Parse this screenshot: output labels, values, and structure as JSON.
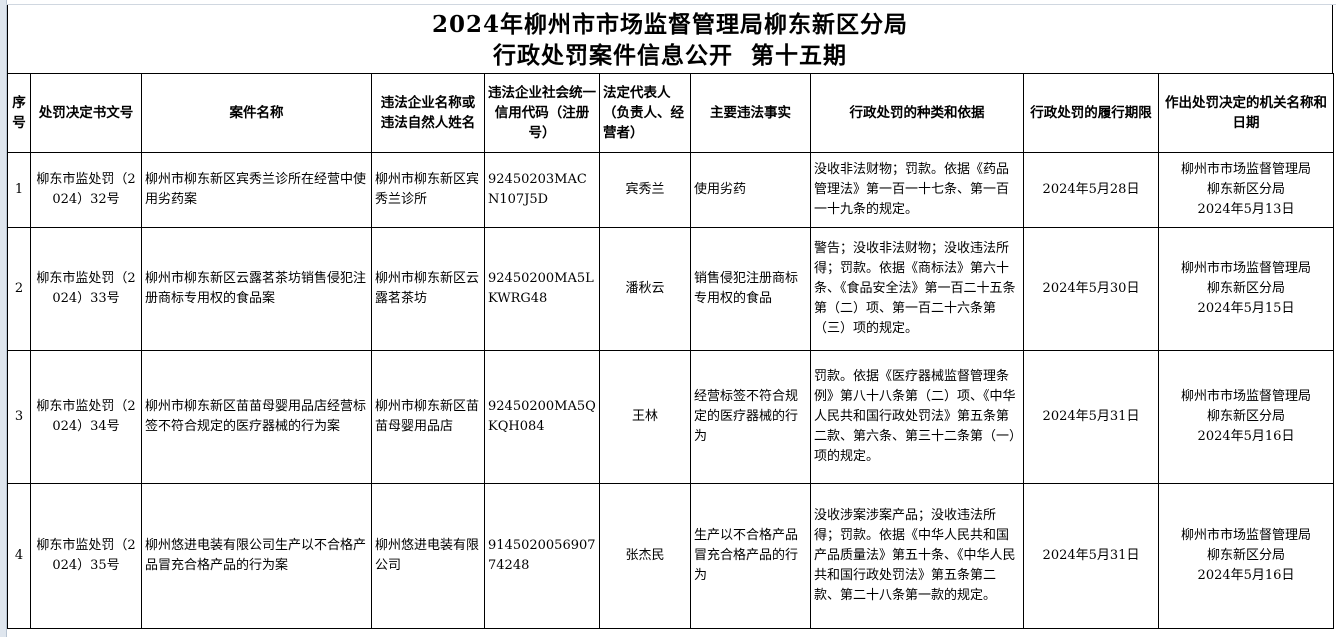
{
  "title": {
    "line1": "2024年柳州市市场监督管理局柳东新区分局",
    "line2": "行政处罚案件信息公开  第十五期"
  },
  "headers": [
    "序号",
    "处罚决定书文号",
    "案件名称",
    "违法企业名称或违法自然人姓名",
    "违法企业社会统一信用代码（注册号）",
    "法定代表人（负责人、经营者）",
    "主要违法事实",
    "行政处罚的种类和依据",
    "行政处罚的履行期限",
    "作出处罚决定的机关名称和日期"
  ],
  "rows": [
    {
      "no": "1",
      "doc": "柳东市监处罚（2024）32号",
      "case": "柳州市柳东新区宾秀兰诊所在经营中使用劣药案",
      "entity": "柳州市柳东新区宾秀兰诊所",
      "code": "92450203MACN107J5D",
      "rep": "宾秀兰",
      "fact": "使用劣药",
      "basis": "没收非法财物；罚款。依据《药品管理法》第一百一十七条、第一百一十九条的规定。",
      "deadline": "2024年5月28日",
      "org": "柳州市市场监督管理局柳东新区分局",
      "date": "2024年5月13日"
    },
    {
      "no": "2",
      "doc": "柳东市监处罚（2024）33号",
      "case": "柳州市柳东新区云露茗茶坊销售侵犯注册商标专用权的食品案",
      "entity": "柳州市柳东新区云露茗茶坊",
      "code": "92450200MA5LKWRG48",
      "rep": "潘秋云",
      "fact": "销售侵犯注册商标专用权的食品",
      "basis": "警告；没收非法财物；没收违法所得；罚款。依据《商标法》第六十条、《食品安全法》第一百二十五条第（二）项、第一百二十六条第（三）项的规定。",
      "deadline": "2024年5月30日",
      "org": "柳州市市场监督管理局柳东新区分局",
      "date": "2024年5月15日"
    },
    {
      "no": "3",
      "doc": "柳东市监处罚（2024）34号",
      "case": "柳州市柳东新区苗苗母婴用品店经营标签不符合规定的医疗器械的行为案",
      "entity": "柳州市柳东新区苗苗母婴用品店",
      "code": "92450200MA5QKQH084",
      "rep": "王林",
      "fact": "经营标签不符合规定的医疗器械的行为",
      "basis": "罚款。依据《医疗器械监督管理条例》第八十八条第（二）项、《中华人民共和国行政处罚法》第五条第二款、第六条、第三十二条第（一）项的规定。",
      "deadline": "2024年5月31日",
      "org": "柳州市市场监督管理局柳东新区分局",
      "date": "2024年5月16日"
    },
    {
      "no": "4",
      "doc": "柳东市监处罚（2024）35号",
      "case": "柳州悠进电装有限公司生产以不合格产品冒充合格产品的行为案",
      "entity": "柳州悠进电装有限公司",
      "code": "914502005690774248",
      "rep": "张杰民",
      "fact": "生产以不合格产品冒充合格产品的行为",
      "basis": "没收涉案涉案产品；没收违法所得；罚款。依据《中华人民共和国产品质量法》第五十条、《中华人民共和国行政处罚法》第五条第二款、第二十八条第一款的规定。",
      "deadline": "2024年5月31日",
      "org": "柳州市市场监督管理局柳东新区分局",
      "date": "2024年5月16日"
    }
  ]
}
